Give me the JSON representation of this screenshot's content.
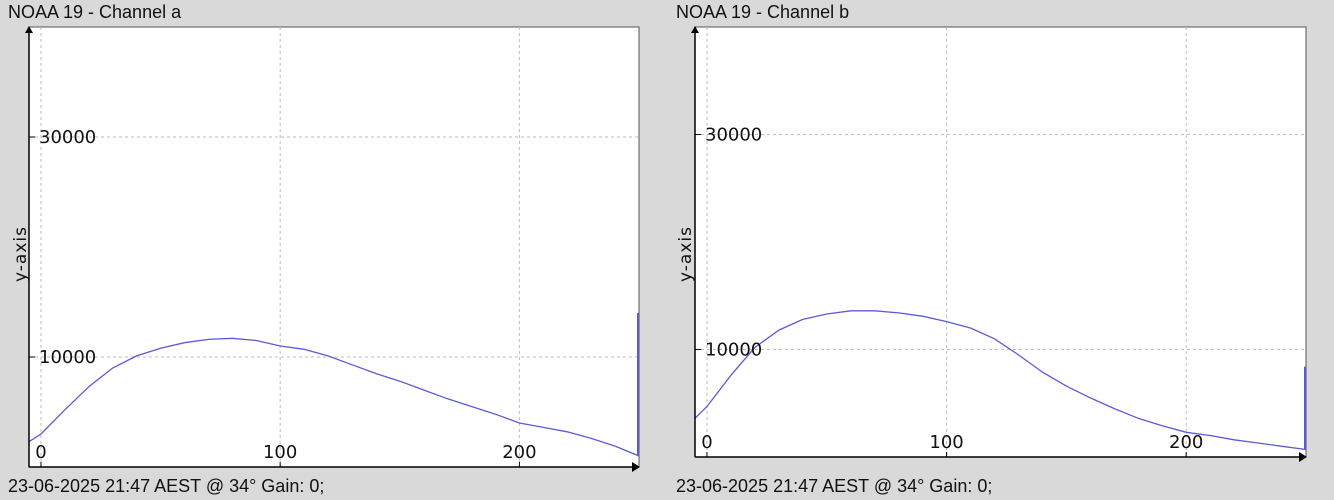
{
  "colors": {
    "line": "#5b5bd6",
    "grid": "#bdbdbd",
    "axis": "#000000",
    "plot_bg": "#ffffff",
    "page_bg": "#d9d9d9"
  },
  "charts": [
    {
      "title": "NOAA 19 - Channel a",
      "footer": "23-06-2025 21:47 AEST @ 34° Gain: 0;",
      "ylabel": "y-axis"
    },
    {
      "title": "NOAA 19 - Channel b",
      "footer": "23-06-2025 21:47 AEST @ 34° Gain: 0;",
      "ylabel": "y-axis"
    }
  ],
  "chart_data": [
    {
      "type": "line",
      "title": "NOAA 19 - Channel a",
      "xlabel": "",
      "ylabel": "y-axis",
      "xlim": [
        -5,
        250
      ],
      "ylim": [
        0,
        40000
      ],
      "xticks": [
        0,
        100,
        200
      ],
      "yticks": [
        10000,
        30000
      ],
      "grid": true,
      "x": [
        -5,
        0,
        10,
        20,
        30,
        40,
        50,
        60,
        70,
        80,
        90,
        100,
        110,
        120,
        130,
        140,
        150,
        160,
        170,
        180,
        190,
        200,
        210,
        220,
        230,
        240,
        250
      ],
      "values": [
        2300,
        3000,
        5200,
        7300,
        9000,
        10100,
        10800,
        11300,
        11600,
        11700,
        11500,
        11000,
        10700,
        10100,
        9300,
        8500,
        7800,
        7000,
        6200,
        5500,
        4800,
        4000,
        3600,
        3200,
        2600,
        1900,
        1000
      ],
      "end_spike": 14000
    },
    {
      "type": "line",
      "title": "NOAA 19 - Channel b",
      "xlabel": "",
      "ylabel": "y-axis",
      "xlim": [
        -5,
        250
      ],
      "ylim": [
        0,
        40000
      ],
      "xticks": [
        0,
        100,
        200
      ],
      "yticks": [
        10000,
        30000
      ],
      "grid": true,
      "x": [
        -5,
        0,
        10,
        20,
        30,
        40,
        50,
        60,
        70,
        80,
        90,
        100,
        110,
        120,
        130,
        140,
        150,
        160,
        170,
        180,
        190,
        200,
        210,
        220,
        230,
        240,
        250
      ],
      "values": [
        3600,
        4700,
        7600,
        10200,
        11800,
        12800,
        13300,
        13600,
        13600,
        13400,
        13100,
        12600,
        12000,
        11000,
        9500,
        7900,
        6600,
        5500,
        4500,
        3600,
        2900,
        2300,
        2000,
        1600,
        1300,
        1000,
        700
      ],
      "end_spike": 8400
    }
  ]
}
